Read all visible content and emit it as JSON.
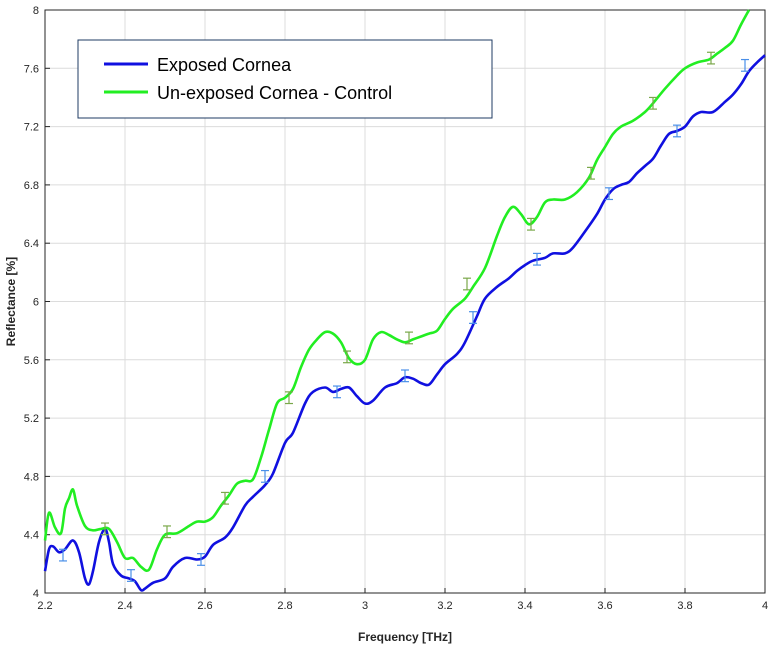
{
  "chart_data": {
    "type": "line",
    "title": "",
    "xlabel": "Frequency [THz]",
    "ylabel": "Reflectance [%]",
    "xlim": [
      2.2,
      4.0
    ],
    "ylim": [
      4.0,
      8.0
    ],
    "xticks": [
      2.2,
      2.4,
      2.6,
      2.8,
      3.0,
      3.2,
      3.4,
      3.6,
      3.8,
      4.0
    ],
    "xtick_labels": [
      "2.2",
      "2.4",
      "2.6",
      "2.8",
      "3",
      "3.2",
      "3.4",
      "3.6",
      "3.8",
      "4"
    ],
    "yticks": [
      4.0,
      4.4,
      4.8,
      5.2,
      5.6,
      6.0,
      6.4,
      6.8,
      7.2,
      7.6,
      8.0
    ],
    "ytick_labels": [
      "4",
      "4.4",
      "4.8",
      "5.2",
      "5.6",
      "6",
      "6.4",
      "6.8",
      "7.2",
      "7.6",
      "8"
    ],
    "grid": true,
    "legend_position": "top-left",
    "series": [
      {
        "name": "Exposed Cornea",
        "color": "#1010e0",
        "x": [
          2.2,
          2.21,
          2.22,
          2.235,
          2.25,
          2.27,
          2.285,
          2.3,
          2.31,
          2.32,
          2.335,
          2.35,
          2.36,
          2.37,
          2.39,
          2.41,
          2.425,
          2.44,
          2.45,
          2.47,
          2.5,
          2.52,
          2.55,
          2.58,
          2.6,
          2.62,
          2.65,
          2.67,
          2.7,
          2.72,
          2.75,
          2.77,
          2.8,
          2.82,
          2.85,
          2.87,
          2.9,
          2.92,
          2.94,
          2.96,
          2.98,
          3.0,
          3.02,
          3.05,
          3.08,
          3.1,
          3.12,
          3.14,
          3.16,
          3.18,
          3.2,
          3.23,
          3.25,
          3.28,
          3.3,
          3.33,
          3.36,
          3.38,
          3.4,
          3.42,
          3.45,
          3.47,
          3.5,
          3.52,
          3.55,
          3.58,
          3.6,
          3.62,
          3.64,
          3.66,
          3.68,
          3.7,
          3.72,
          3.74,
          3.76,
          3.78,
          3.8,
          3.82,
          3.84,
          3.87,
          3.9,
          3.92,
          3.94,
          3.96,
          3.98,
          4.0
        ],
        "y": [
          4.15,
          4.3,
          4.32,
          4.28,
          4.3,
          4.36,
          4.28,
          4.1,
          4.06,
          4.15,
          4.35,
          4.44,
          4.35,
          4.2,
          4.12,
          4.1,
          4.08,
          4.02,
          4.03,
          4.07,
          4.1,
          4.18,
          4.24,
          4.23,
          4.25,
          4.33,
          4.38,
          4.45,
          4.6,
          4.66,
          4.74,
          4.82,
          5.03,
          5.1,
          5.3,
          5.38,
          5.41,
          5.38,
          5.4,
          5.41,
          5.35,
          5.3,
          5.32,
          5.41,
          5.44,
          5.48,
          5.47,
          5.44,
          5.43,
          5.5,
          5.57,
          5.64,
          5.72,
          5.9,
          6.02,
          6.1,
          6.16,
          6.21,
          6.25,
          6.28,
          6.3,
          6.33,
          6.33,
          6.37,
          6.48,
          6.6,
          6.7,
          6.77,
          6.8,
          6.82,
          6.88,
          6.93,
          6.98,
          7.07,
          7.15,
          7.17,
          7.2,
          7.27,
          7.3,
          7.3,
          7.37,
          7.42,
          7.49,
          7.58,
          7.64,
          7.69
        ]
      },
      {
        "name": "Un-exposed Cornea - Control",
        "color": "#22ee22",
        "x": [
          2.2,
          2.21,
          2.225,
          2.24,
          2.25,
          2.26,
          2.27,
          2.28,
          2.3,
          2.32,
          2.34,
          2.36,
          2.38,
          2.4,
          2.42,
          2.44,
          2.46,
          2.48,
          2.5,
          2.53,
          2.56,
          2.58,
          2.6,
          2.62,
          2.64,
          2.66,
          2.68,
          2.7,
          2.72,
          2.74,
          2.76,
          2.78,
          2.8,
          2.82,
          2.84,
          2.86,
          2.88,
          2.9,
          2.92,
          2.94,
          2.96,
          2.98,
          3.0,
          3.02,
          3.04,
          3.06,
          3.08,
          3.1,
          3.12,
          3.14,
          3.16,
          3.18,
          3.2,
          3.22,
          3.25,
          3.27,
          3.3,
          3.33,
          3.35,
          3.37,
          3.39,
          3.41,
          3.43,
          3.45,
          3.47,
          3.5,
          3.53,
          3.56,
          3.58,
          3.6,
          3.62,
          3.64,
          3.67,
          3.7,
          3.72,
          3.75,
          3.78,
          3.8,
          3.83,
          3.86,
          3.88,
          3.9,
          3.92,
          3.94,
          3.96
        ],
        "y": [
          4.36,
          4.55,
          4.45,
          4.41,
          4.58,
          4.65,
          4.71,
          4.6,
          4.46,
          4.43,
          4.44,
          4.44,
          4.35,
          4.24,
          4.24,
          4.18,
          4.16,
          4.3,
          4.4,
          4.41,
          4.46,
          4.49,
          4.49,
          4.52,
          4.6,
          4.67,
          4.75,
          4.77,
          4.78,
          4.93,
          5.12,
          5.3,
          5.34,
          5.4,
          5.55,
          5.67,
          5.74,
          5.79,
          5.78,
          5.72,
          5.61,
          5.57,
          5.6,
          5.74,
          5.79,
          5.77,
          5.74,
          5.72,
          5.74,
          5.76,
          5.78,
          5.8,
          5.88,
          5.95,
          6.02,
          6.1,
          6.23,
          6.45,
          6.58,
          6.65,
          6.6,
          6.53,
          6.58,
          6.68,
          6.7,
          6.7,
          6.75,
          6.85,
          6.97,
          7.06,
          7.15,
          7.2,
          7.24,
          7.3,
          7.36,
          7.46,
          7.55,
          7.6,
          7.64,
          7.66,
          7.7,
          7.74,
          7.79,
          7.9,
          8.0
        ]
      }
    ],
    "error_bars": [
      {
        "series": "Exposed Cornea",
        "color": "#4a8fe8",
        "points": [
          {
            "x": 2.245,
            "y": 4.26,
            "err": 0.04
          },
          {
            "x": 2.415,
            "y": 4.12,
            "err": 0.04
          },
          {
            "x": 2.59,
            "y": 4.23,
            "err": 0.04
          },
          {
            "x": 2.75,
            "y": 4.8,
            "err": 0.04
          },
          {
            "x": 2.93,
            "y": 5.38,
            "err": 0.04
          },
          {
            "x": 3.1,
            "y": 5.49,
            "err": 0.04
          },
          {
            "x": 3.27,
            "y": 5.89,
            "err": 0.04
          },
          {
            "x": 3.43,
            "y": 6.29,
            "err": 0.04
          },
          {
            "x": 3.61,
            "y": 6.74,
            "err": 0.04
          },
          {
            "x": 3.78,
            "y": 7.17,
            "err": 0.04
          },
          {
            "x": 3.95,
            "y": 7.62,
            "err": 0.04
          }
        ]
      },
      {
        "series": "Un-exposed Cornea - Control",
        "color": "#7aa84a",
        "points": [
          {
            "x": 2.35,
            "y": 4.44,
            "err": 0.04
          },
          {
            "x": 2.505,
            "y": 4.42,
            "err": 0.04
          },
          {
            "x": 2.65,
            "y": 4.65,
            "err": 0.04
          },
          {
            "x": 2.81,
            "y": 5.34,
            "err": 0.04
          },
          {
            "x": 2.955,
            "y": 5.62,
            "err": 0.04
          },
          {
            "x": 3.11,
            "y": 5.75,
            "err": 0.04
          },
          {
            "x": 3.255,
            "y": 6.12,
            "err": 0.04
          },
          {
            "x": 3.415,
            "y": 6.53,
            "err": 0.04
          },
          {
            "x": 3.565,
            "y": 6.88,
            "err": 0.04
          },
          {
            "x": 3.72,
            "y": 7.36,
            "err": 0.04
          },
          {
            "x": 3.865,
            "y": 7.67,
            "err": 0.04
          }
        ]
      }
    ]
  }
}
